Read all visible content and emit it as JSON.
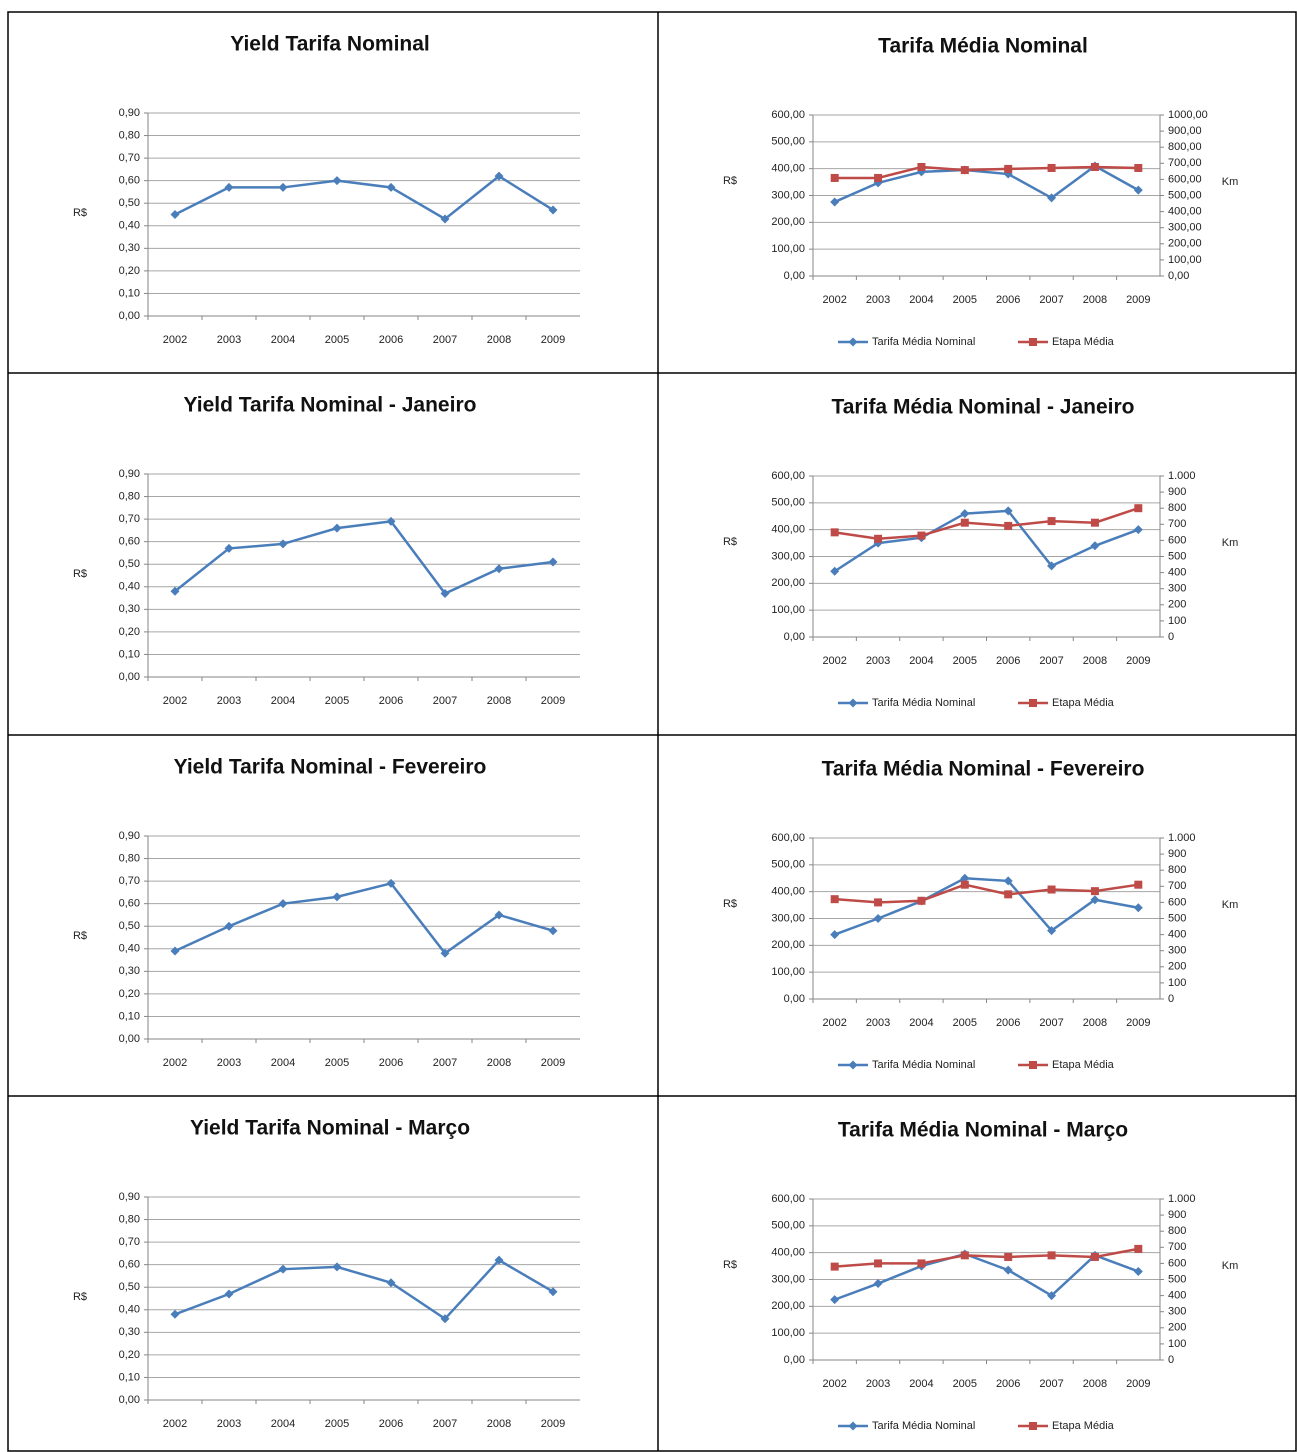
{
  "chart_data": [
    {
      "type": "line",
      "title": "Yield Tarifa Nominal",
      "ylabel": "R$",
      "categories": [
        "2002",
        "2003",
        "2004",
        "2005",
        "2006",
        "2007",
        "2008",
        "2009"
      ],
      "values": [
        0.45,
        0.57,
        0.57,
        0.6,
        0.57,
        0.43,
        0.62,
        0.47
      ],
      "color": "#4a7ebb",
      "grid": true,
      "ylim": [
        0,
        0.9
      ],
      "yticks": [
        {
          "value": 0,
          "label": "0,00"
        },
        {
          "value": 0.1,
          "label": "0,10"
        },
        {
          "value": 0.2,
          "label": "0,20"
        },
        {
          "value": 0.3,
          "label": "0,30"
        },
        {
          "value": 0.4,
          "label": "0,40"
        },
        {
          "value": 0.5,
          "label": "0,50"
        },
        {
          "value": 0.6,
          "label": "0,60"
        },
        {
          "value": 0.7,
          "label": "0,70"
        },
        {
          "value": 0.8,
          "label": "0,80"
        },
        {
          "value": 0.9,
          "label": "0,90"
        }
      ]
    },
    {
      "type": "line",
      "title": "Tarifa Média Nominal",
      "ylabel": "R$",
      "y2label": "Km",
      "legend": "bottom",
      "grid": true,
      "categories": [
        "2002",
        "2003",
        "2004",
        "2005",
        "2006",
        "2007",
        "2008",
        "2009"
      ],
      "series": [
        {
          "name": "Tarifa Média Nominal",
          "color": "#4a7ebb",
          "values": [
            276,
            347,
            388,
            395,
            380,
            291,
            410,
            320
          ]
        },
        {
          "name": "Etapa Média",
          "color": "#be4b48",
          "axis": "y2",
          "values": [
            609,
            609,
            677,
            658,
            665,
            671,
            677,
            671
          ]
        }
      ],
      "ylim": [
        0,
        600
      ],
      "yticks": [
        {
          "value": 0,
          "label": "0,00"
        },
        {
          "value": 100,
          "label": "100,00"
        },
        {
          "value": 200,
          "label": "200,00"
        },
        {
          "value": 300,
          "label": "300,00"
        },
        {
          "value": 400,
          "label": "400,00"
        },
        {
          "value": 500,
          "label": "500,00"
        },
        {
          "value": 600,
          "label": "600,00"
        }
      ],
      "y2lim": [
        0,
        1000
      ],
      "y2ticks": [
        {
          "value": 0,
          "label": "0,00"
        },
        {
          "value": 100,
          "label": "100,00"
        },
        {
          "value": 200,
          "label": "200,00"
        },
        {
          "value": 300,
          "label": "300,00"
        },
        {
          "value": 400,
          "label": "400,00"
        },
        {
          "value": 500,
          "label": "500,00"
        },
        {
          "value": 600,
          "label": "600,00"
        },
        {
          "value": 700,
          "label": "700,00"
        },
        {
          "value": 800,
          "label": "800,00"
        },
        {
          "value": 900,
          "label": "900,00"
        },
        {
          "value": 1000,
          "label": "1000,00"
        }
      ]
    },
    {
      "type": "line",
      "title": "Yield Tarifa Nominal - Janeiro",
      "ylabel": "R$",
      "categories": [
        "2002",
        "2003",
        "2004",
        "2005",
        "2006",
        "2007",
        "2008",
        "2009"
      ],
      "values": [
        0.38,
        0.57,
        0.59,
        0.66,
        0.69,
        0.37,
        0.48,
        0.51
      ],
      "color": "#4a7ebb",
      "grid": true,
      "ylim": [
        0,
        0.9
      ],
      "yticks": [
        {
          "value": 0,
          "label": "0,00"
        },
        {
          "value": 0.1,
          "label": "0,10"
        },
        {
          "value": 0.2,
          "label": "0,20"
        },
        {
          "value": 0.3,
          "label": "0,30"
        },
        {
          "value": 0.4,
          "label": "0,40"
        },
        {
          "value": 0.5,
          "label": "0,50"
        },
        {
          "value": 0.6,
          "label": "0,60"
        },
        {
          "value": 0.7,
          "label": "0,70"
        },
        {
          "value": 0.8,
          "label": "0,80"
        },
        {
          "value": 0.9,
          "label": "0,90"
        }
      ]
    },
    {
      "type": "line",
      "title": "Tarifa Média Nominal - Janeiro",
      "ylabel": "R$",
      "y2label": "Km",
      "legend": "bottom",
      "grid": true,
      "categories": [
        "2002",
        "2003",
        "2004",
        "2005",
        "2006",
        "2007",
        "2008",
        "2009"
      ],
      "series": [
        {
          "name": "Tarifa Média Nominal",
          "color": "#4a7ebb",
          "values": [
            245,
            350,
            370,
            460,
            470,
            265,
            340,
            400
          ]
        },
        {
          "name": "Etapa Média",
          "color": "#be4b48",
          "axis": "y2",
          "values": [
            650,
            610,
            630,
            710,
            690,
            720,
            710,
            800
          ]
        }
      ],
      "ylim": [
        0,
        600
      ],
      "yticks": [
        {
          "value": 0,
          "label": "0,00"
        },
        {
          "value": 100,
          "label": "100,00"
        },
        {
          "value": 200,
          "label": "200,00"
        },
        {
          "value": 300,
          "label": "300,00"
        },
        {
          "value": 400,
          "label": "400,00"
        },
        {
          "value": 500,
          "label": "500,00"
        },
        {
          "value": 600,
          "label": "600,00"
        }
      ],
      "y2lim": [
        0,
        1000
      ],
      "y2ticks": [
        0,
        100,
        200,
        300,
        400,
        500,
        600,
        700,
        800,
        900,
        {
          "value": 1000,
          "label": "1.000"
        }
      ]
    },
    {
      "type": "line",
      "title": "Yield Tarifa Nominal - Fevereiro",
      "ylabel": "R$",
      "categories": [
        "2002",
        "2003",
        "2004",
        "2005",
        "2006",
        "2007",
        "2008",
        "2009"
      ],
      "values": [
        0.39,
        0.5,
        0.6,
        0.63,
        0.69,
        0.38,
        0.55,
        0.48
      ],
      "color": "#4a7ebb",
      "grid": true,
      "ylim": [
        0,
        0.9
      ],
      "yticks": [
        {
          "value": 0,
          "label": "0,00"
        },
        {
          "value": 0.1,
          "label": "0,10"
        },
        {
          "value": 0.2,
          "label": "0,20"
        },
        {
          "value": 0.3,
          "label": "0,30"
        },
        {
          "value": 0.4,
          "label": "0,40"
        },
        {
          "value": 0.5,
          "label": "0,50"
        },
        {
          "value": 0.6,
          "label": "0,60"
        },
        {
          "value": 0.7,
          "label": "0,70"
        },
        {
          "value": 0.8,
          "label": "0,80"
        },
        {
          "value": 0.9,
          "label": "0,90"
        }
      ]
    },
    {
      "type": "line",
      "title": "Tarifa Média Nominal - Fevereiro",
      "ylabel": "R$",
      "y2label": "Km",
      "legend": "bottom",
      "grid": true,
      "categories": [
        "2002",
        "2003",
        "2004",
        "2005",
        "2006",
        "2007",
        "2008",
        "2009"
      ],
      "series": [
        {
          "name": "Tarifa Média Nominal",
          "color": "#4a7ebb",
          "values": [
            240,
            300,
            365,
            450,
            440,
            255,
            370,
            340
          ]
        },
        {
          "name": "Etapa Média",
          "color": "#be4b48",
          "axis": "y2",
          "values": [
            620,
            600,
            610,
            710,
            650,
            680,
            670,
            710
          ]
        }
      ],
      "ylim": [
        0,
        600
      ],
      "yticks": [
        {
          "value": 0,
          "label": "0,00"
        },
        {
          "value": 100,
          "label": "100,00"
        },
        {
          "value": 200,
          "label": "200,00"
        },
        {
          "value": 300,
          "label": "300,00"
        },
        {
          "value": 400,
          "label": "400,00"
        },
        {
          "value": 500,
          "label": "500,00"
        },
        {
          "value": 600,
          "label": "600,00"
        }
      ],
      "y2lim": [
        0,
        1000
      ],
      "y2ticks": [
        0,
        100,
        200,
        300,
        400,
        500,
        600,
        700,
        800,
        900,
        {
          "value": 1000,
          "label": "1.000"
        }
      ]
    },
    {
      "type": "line",
      "title": "Yield Tarifa Nominal - Março",
      "ylabel": "R$",
      "categories": [
        "2002",
        "2003",
        "2004",
        "2005",
        "2006",
        "2007",
        "2008",
        "2009"
      ],
      "values": [
        0.38,
        0.47,
        0.58,
        0.59,
        0.52,
        0.36,
        0.62,
        0.48
      ],
      "color": "#4a7ebb",
      "grid": true,
      "ylim": [
        0,
        0.9
      ],
      "yticks": [
        {
          "value": 0,
          "label": "0,00"
        },
        {
          "value": 0.1,
          "label": "0,10"
        },
        {
          "value": 0.2,
          "label": "0,20"
        },
        {
          "value": 0.3,
          "label": "0,30"
        },
        {
          "value": 0.4,
          "label": "0,40"
        },
        {
          "value": 0.5,
          "label": "0,50"
        },
        {
          "value": 0.6,
          "label": "0,60"
        },
        {
          "value": 0.7,
          "label": "0,70"
        },
        {
          "value": 0.8,
          "label": "0,80"
        },
        {
          "value": 0.9,
          "label": "0,90"
        }
      ]
    },
    {
      "type": "line",
      "title": "Tarifa Média Nominal - Março",
      "ylabel": "R$",
      "y2label": "Km",
      "legend": "bottom",
      "grid": true,
      "categories": [
        "2002",
        "2003",
        "2004",
        "2005",
        "2006",
        "2007",
        "2008",
        "2009"
      ],
      "series": [
        {
          "name": "Tarifa Média Nominal",
          "color": "#4a7ebb",
          "values": [
            225,
            285,
            350,
            395,
            335,
            240,
            390,
            330
          ]
        },
        {
          "name": "Etapa Média",
          "color": "#be4b48",
          "axis": "y2",
          "values": [
            580,
            600,
            600,
            650,
            640,
            650,
            640,
            690
          ]
        }
      ],
      "ylim": [
        0,
        600
      ],
      "yticks": [
        {
          "value": 0,
          "label": "0,00"
        },
        {
          "value": 100,
          "label": "100,00"
        },
        {
          "value": 200,
          "label": "200,00"
        },
        {
          "value": 300,
          "label": "300,00"
        },
        {
          "value": 400,
          "label": "400,00"
        },
        {
          "value": 500,
          "label": "500,00"
        },
        {
          "value": 600,
          "label": "600,00"
        }
      ],
      "y2lim": [
        0,
        1000
      ],
      "y2ticks": [
        0,
        100,
        200,
        300,
        400,
        500,
        600,
        700,
        800,
        900,
        {
          "value": 1000,
          "label": "1.000"
        }
      ]
    }
  ]
}
